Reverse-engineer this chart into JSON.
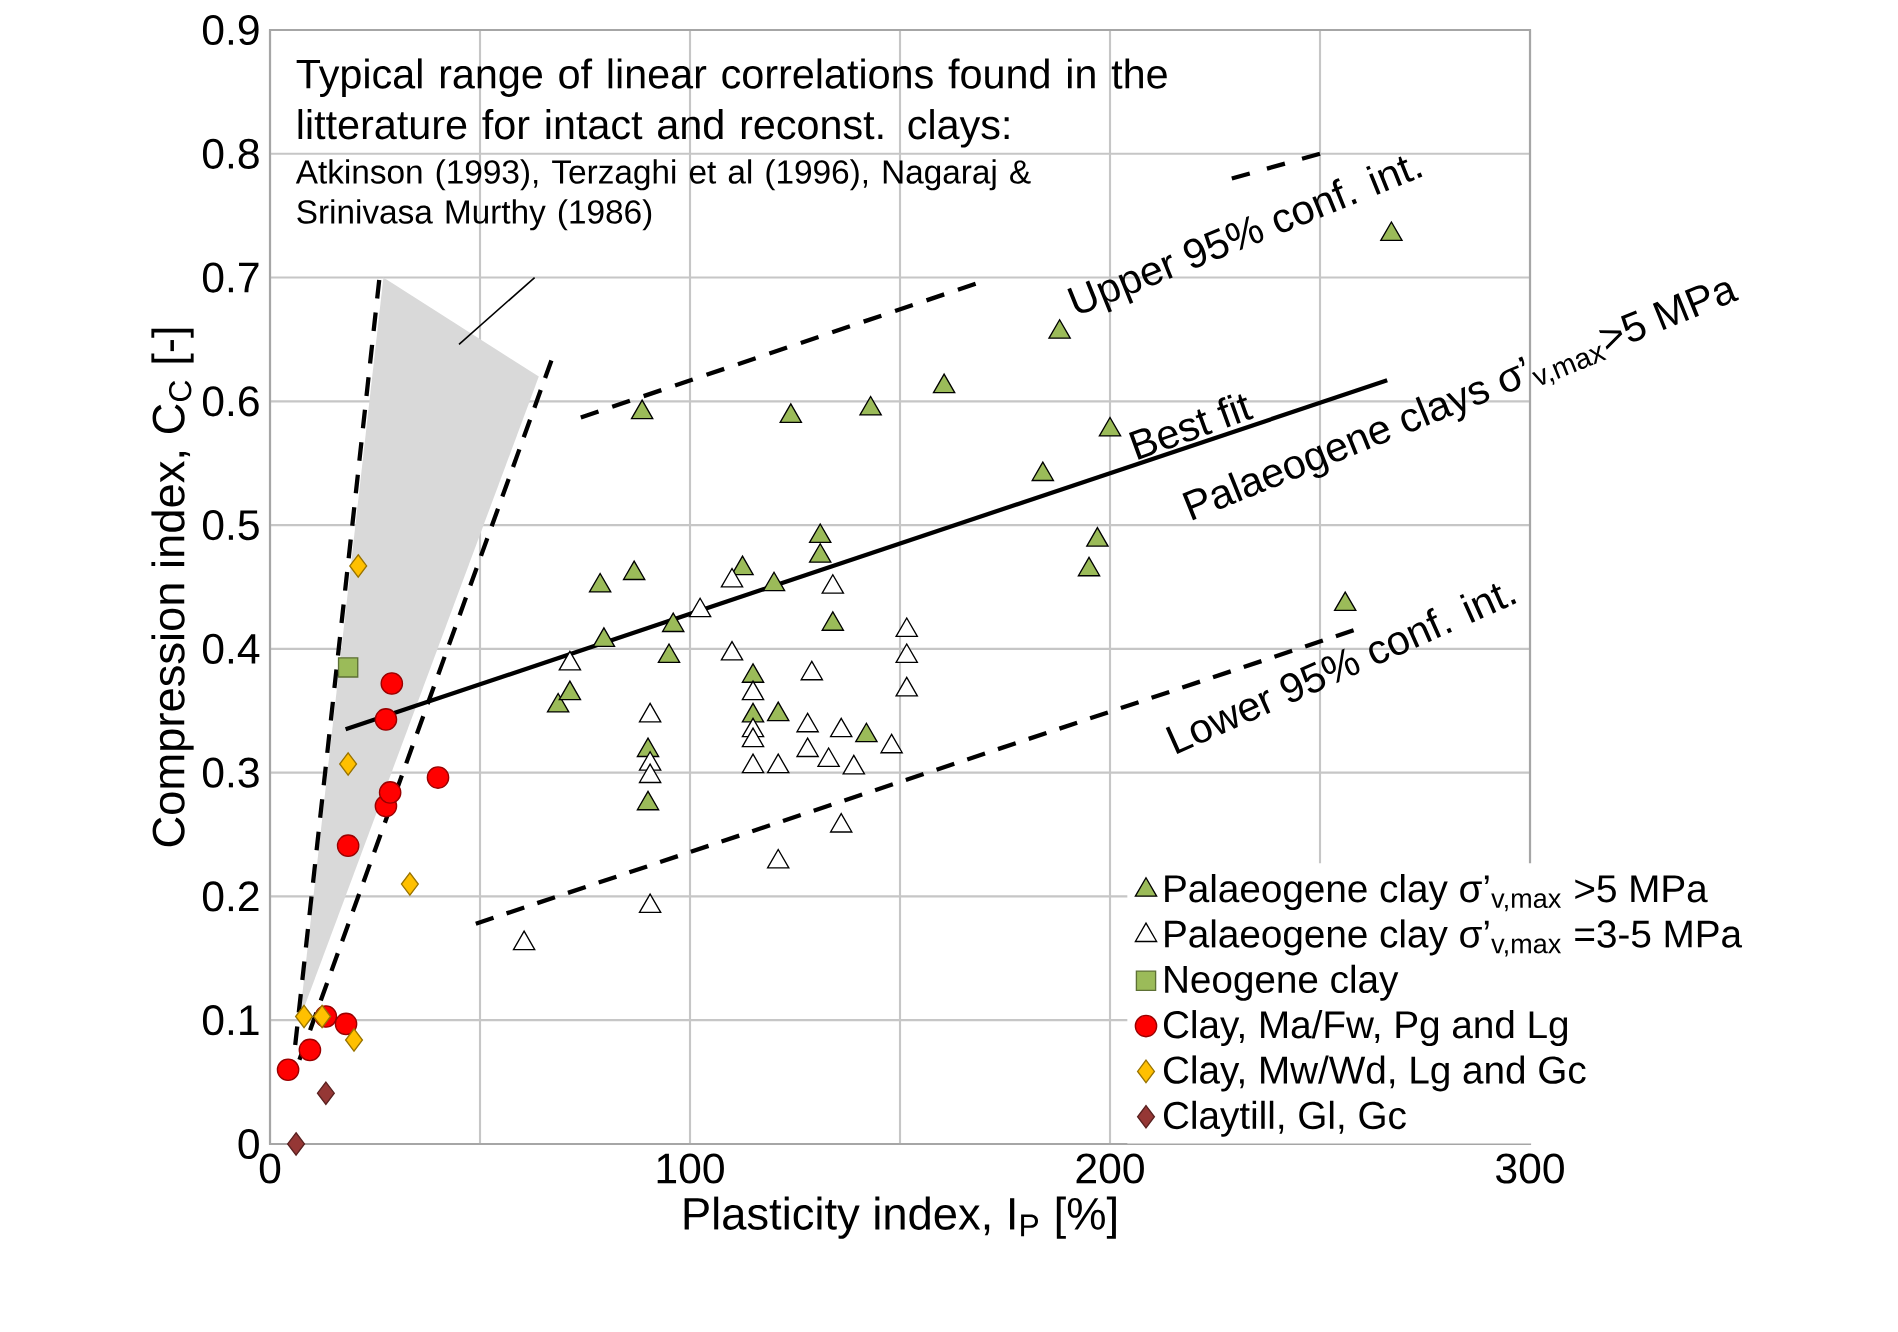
{
  "chart_data": {
    "type": "scatter",
    "xlabel": "Plasticity index, I$_{P}$ [%]",
    "ylabel": "Compression index, C$_{C}$ [-]",
    "xlim": [
      0,
      300
    ],
    "ylim": [
      0,
      0.9
    ],
    "xticks": [
      0,
      {
        "value": 50,
        "label": null
      },
      100,
      {
        "value": 150,
        "label": null
      },
      200,
      {
        "value": 250,
        "label": null
      },
      300
    ],
    "yticks": [
      0,
      0.1,
      0.2,
      0.3,
      0.4,
      0.5,
      0.6,
      0.7,
      0.8,
      0.9
    ],
    "grid": true,
    "legend": "bottom right",
    "annotations": [
      "Typical range of  linear correlations found in the litterature for intact and reconst. clays:",
      "Atkinson (1993), Terzaghi et al (1996), Nagaraj & Srinivasa Murthy (1986)",
      "Upper 95% conf. int.",
      "Best fit",
      "Palaeogene clays σ’$_{v,max}$>5 MPa",
      "Lower 95% conf. int."
    ],
    "series": [
      {
        "type": "area",
        "color": "#d9d9d9",
        "x": [
          7,
          27,
          64,
          7
        ],
        "values": [
          0.1,
          0.7,
          0.62,
          0.1
        ]
      },
      {
        "type": "line",
        "color": "#000000",
        "line_style": "dashed",
        "x": [
          6,
          26
        ],
        "values": [
          0.08,
          0.698
        ]
      },
      {
        "type": "line",
        "color": "#000000",
        "line_style": "dashed",
        "x": [
          7,
          67
        ],
        "values": [
          0.068,
          0.633
        ]
      },
      {
        "type": "line",
        "color": "#000000",
        "line_style": "dashed",
        "x": [
          74,
          168
        ],
        "values": [
          0.587,
          0.695
        ]
      },
      {
        "type": "line",
        "color": "#000000",
        "line_style": "dashed",
        "x": [
          229,
          250
        ],
        "values": [
          0.78,
          0.8
        ]
      },
      {
        "type": "line",
        "color": "#000000",
        "line_style": "solid",
        "x": [
          18,
          266
        ],
        "values": [
          0.335,
          0.617
        ]
      },
      {
        "type": "line",
        "color": "#000000",
        "line_style": "dashed",
        "x": [
          49,
          258
        ],
        "values": [
          0.178,
          0.415
        ]
      },
      {
        "type": "line",
        "color": "#000000",
        "line_style": "solid",
        "x": [
          45,
          63
        ],
        "values": [
          0.646,
          0.7
        ]
      },
      {
        "name": "Palaeogene clay    σ’$_{v,max}$ >5 MPa",
        "color": "#9bbb59",
        "marker": "triangle",
        "x": [
          68.6,
          71.4,
          78.6,
          79.5,
          86.7,
          88.6,
          90,
          90,
          95,
          96,
          112.5,
          115,
          115,
          120,
          121,
          124,
          131,
          131,
          134,
          142,
          143,
          160.5,
          184,
          188,
          195,
          197,
          200,
          256,
          267
        ],
        "values": [
          0.354,
          0.364,
          0.451,
          0.407,
          0.461,
          0.591,
          0.318,
          0.275,
          0.394,
          0.419,
          0.465,
          0.378,
          0.346,
          0.452,
          0.347,
          0.588,
          0.491,
          0.475,
          0.42,
          0.33,
          0.594,
          0.612,
          0.541,
          0.656,
          0.464,
          0.488,
          0.577,
          0.436,
          0.735
        ]
      },
      {
        "name": "Palaeogene clay    σ’$_{v,max}$ =3-5 MPa",
        "color": "#ffffff",
        "marker": "triangle",
        "x": [
          60.5,
          71.4,
          90.5,
          90.5,
          90.5,
          90.5,
          102.4,
          110,
          110,
          115,
          115,
          115,
          115,
          121,
          121,
          128,
          128,
          129,
          133,
          134,
          136,
          136,
          139,
          148,
          151.6,
          151.6,
          151.6
        ],
        "values": [
          0.162,
          0.388,
          0.346,
          0.307,
          0.297,
          0.192,
          0.431,
          0.455,
          0.396,
          0.364,
          0.334,
          0.326,
          0.305,
          0.305,
          0.228,
          0.338,
          0.318,
          0.38,
          0.31,
          0.45,
          0.334,
          0.257,
          0.304,
          0.321,
          0.415,
          0.394,
          0.367
        ]
      },
      {
        "name": "Neogene clay",
        "color": "#9bbb59",
        "marker": "square",
        "x": [
          18.6
        ],
        "values": [
          0.385
        ]
      },
      {
        "name": "Clay, Ma/Fw, Pg and Lg",
        "color": "#ff0000",
        "marker": "circle",
        "x": [
          4.3,
          9.5,
          13.3,
          18.1,
          18.6,
          27.6,
          27.6,
          28.6,
          29,
          40
        ],
        "values": [
          0.06,
          0.076,
          0.103,
          0.097,
          0.241,
          0.273,
          0.343,
          0.284,
          0.372,
          0.296
        ]
      },
      {
        "name": "Clay, Mw/Wd, Lg and Gc",
        "color": "#ffc000",
        "marker": "diamond",
        "x": [
          8.1,
          12.4,
          18.6,
          20,
          21,
          33.3
        ],
        "values": [
          0.103,
          0.103,
          0.307,
          0.084,
          0.467,
          0.21
        ]
      },
      {
        "name": "Claytill, Gl, Gc",
        "color": "#953735",
        "marker": "diamond",
        "x": [
          6.2,
          13.3
        ],
        "values": [
          0.0,
          0.041
        ]
      }
    ]
  }
}
